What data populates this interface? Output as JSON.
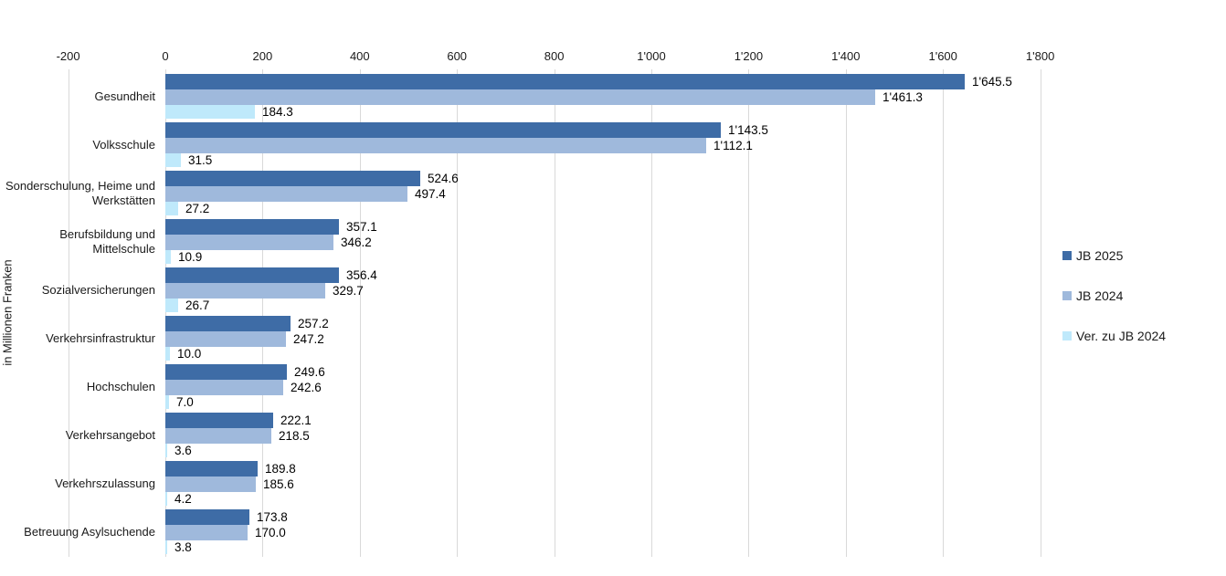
{
  "chart_data": {
    "type": "bar",
    "orientation": "horizontal",
    "title": "",
    "ylabel": "in Millionen Franken",
    "xlim": [
      -200,
      1800
    ],
    "grid": true,
    "gridline_color": "#d9d9d9",
    "legend_position": "right",
    "x_ticks": [
      {
        "value": -200,
        "label": "-200"
      },
      {
        "value": 0,
        "label": "0"
      },
      {
        "value": 200,
        "label": "200"
      },
      {
        "value": 400,
        "label": "400"
      },
      {
        "value": 600,
        "label": "600"
      },
      {
        "value": 800,
        "label": "800"
      },
      {
        "value": 1000,
        "label": "1'000"
      },
      {
        "value": 1200,
        "label": "1'200"
      },
      {
        "value": 1400,
        "label": "1'400"
      },
      {
        "value": 1600,
        "label": "1'600"
      },
      {
        "value": 1800,
        "label": "1'800"
      }
    ],
    "categories": [
      "Gesundheit",
      "Volksschule",
      "Sonderschulung, Heime und Werkstätten",
      "Berufsbildung und Mittelschule",
      "Sozialversicherungen",
      "Verkehrsinfrastruktur",
      "Hochschulen",
      "Verkehrsangebot",
      "Verkehrszulassung",
      "Betreuung Asylsuchende"
    ],
    "series": [
      {
        "name": "JB 2025",
        "color": "#3e6ca6",
        "values": [
          1645.5,
          1143.5,
          524.6,
          357.1,
          356.4,
          257.2,
          249.6,
          222.1,
          189.8,
          173.8
        ],
        "labels": [
          "1'645.5",
          "1'143.5",
          "524.6",
          "357.1",
          "356.4",
          "257.2",
          "249.6",
          "222.1",
          "189.8",
          "173.8"
        ]
      },
      {
        "name": "JB 2024",
        "color": "#9fb9dc",
        "values": [
          1461.3,
          1112.1,
          497.4,
          346.2,
          329.7,
          247.2,
          242.6,
          218.5,
          185.6,
          170.0
        ],
        "labels": [
          "1'461.3",
          "1'112.1",
          "497.4",
          "346.2",
          "329.7",
          "247.2",
          "242.6",
          "218.5",
          "185.6",
          "170.0"
        ]
      },
      {
        "name": "Ver. zu JB 2024",
        "color": "#bfe9fb",
        "values": [
          184.3,
          31.5,
          27.2,
          10.9,
          26.7,
          10.0,
          7.0,
          3.6,
          4.2,
          3.8
        ],
        "labels": [
          "184.3",
          "31.5",
          "27.2",
          "10.9",
          "26.7",
          "10.0",
          "7.0",
          "3.6",
          "4.2",
          "3.8"
        ]
      }
    ]
  }
}
